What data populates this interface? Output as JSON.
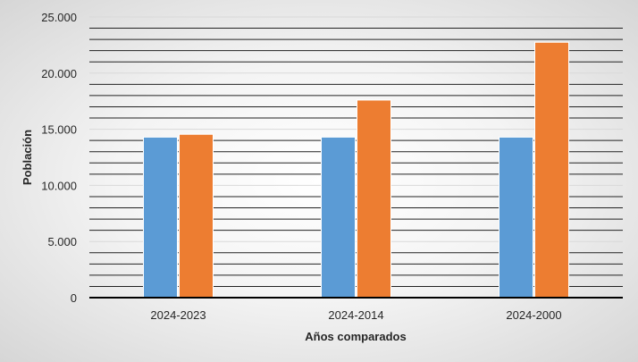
{
  "chart_data": {
    "type": "bar",
    "title": "",
    "xlabel": "Años comparados",
    "ylabel": "Población",
    "ylim": [
      0,
      25000
    ],
    "y_ticks": [
      0,
      5000,
      10000,
      15000,
      20000,
      25000
    ],
    "y_tick_labels": [
      "0",
      "5.000",
      "10.000",
      "15.000",
      "20.000",
      "25.000"
    ],
    "minor_gridline_step": 1000,
    "grid": true,
    "legend": "none",
    "categories": [
      "2024-2023",
      "2024-2014",
      "2024-2000"
    ],
    "series": [
      {
        "color": "#5B9BD5",
        "values": [
          14300,
          14300,
          14300
        ]
      },
      {
        "color": "#ED7D31",
        "values": [
          14550,
          17600,
          22750
        ]
      }
    ]
  }
}
